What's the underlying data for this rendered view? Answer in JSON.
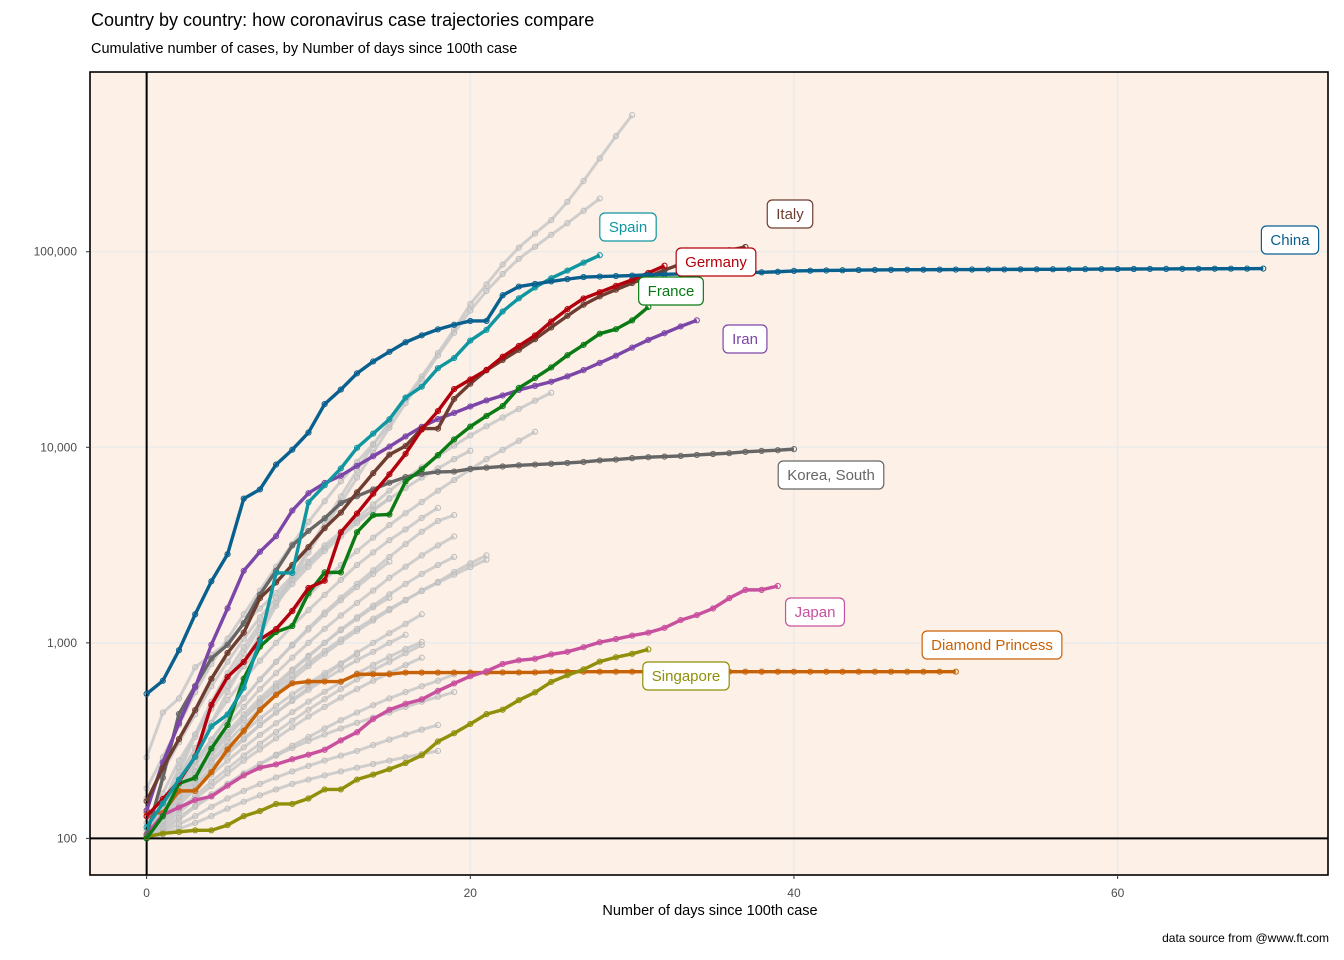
{
  "chart_data": {
    "type": "line",
    "title": "Country by country: how coronavirus case trajectories compare",
    "subtitle": "Cumulative number of cases, by Number of days since 100th case",
    "xlabel": "Number of days since 100th case",
    "ylabel": "",
    "caption": "data source from @www.ft.com",
    "xlim": [
      -3.5,
      73
    ],
    "ylim": [
      65,
      830000
    ],
    "yscale": "log10",
    "grid": true,
    "x_ticks": [
      0,
      20,
      40,
      60
    ],
    "x_tick_labels": [
      "0",
      "20",
      "40",
      "60"
    ],
    "y_ticks": [
      100,
      1000,
      10000,
      100000
    ],
    "y_tick_labels": [
      "100",
      "1,000",
      "10,000",
      "100,000"
    ],
    "reference_lines": {
      "x": 0,
      "y": 100
    },
    "background_color": "#fdf0e6",
    "highlighted_series": [
      {
        "name": "China",
        "color": "#08608f",
        "start_day": 0,
        "values": [
          548,
          640,
          917,
          1400,
          2063,
          2840,
          5464,
          6088,
          8156,
          9720,
          11891,
          16630,
          19731,
          23884,
          27479,
          30771,
          34446,
          37358,
          40085,
          42326,
          44269,
          44279,
          59895,
          66358,
          68413,
          70513,
          72434,
          74211,
          74619,
          75077,
          75550,
          76200,
          76700,
          77000,
          77200,
          77500,
          77900,
          78200,
          78500,
          79000,
          79800,
          80000,
          80200,
          80400,
          80600,
          80700,
          80800,
          80900,
          80950,
          81000,
          81050,
          81100,
          81150,
          81200,
          81250,
          81300,
          81350,
          81400,
          81450,
          81500,
          81550,
          81600,
          81650,
          81700,
          81750,
          81800,
          81850,
          81900,
          81950,
          82000
        ]
      },
      {
        "name": "Italy",
        "color": "#6e3d31",
        "start_day": 0,
        "values": [
          155,
          229,
          322,
          453,
          655,
          888,
          1128,
          1694,
          2036,
          2502,
          3089,
          3858,
          4636,
          5883,
          7375,
          9172,
          10149,
          12462,
          12462,
          17660,
          21157,
          24747,
          27980,
          31506,
          35713,
          41035,
          47021,
          53578,
          59138,
          63927,
          69176,
          74386,
          80589,
          86498,
          92472,
          97689,
          101739,
          105792
        ]
      },
      {
        "name": "Spain",
        "color": "#0f96a1",
        "start_day": 0,
        "values": [
          114,
          151,
          200,
          261,
          374,
          430,
          589,
          1024,
          2277,
          2277,
          5232,
          6391,
          7798,
          9942,
          11748,
          13910,
          17963,
          20410,
          25374,
          28603,
          35136,
          39885,
          49515,
          57786,
          65719,
          73235,
          80110,
          87956,
          95923
        ]
      },
      {
        "name": "Germany",
        "color": "#b3000d",
        "start_day": 0,
        "values": [
          130,
          159,
          196,
          262,
          482,
          670,
          799,
          1040,
          1176,
          1457,
          1908,
          2078,
          3675,
          4585,
          5795,
          7272,
          9257,
          12327,
          15320,
          19848,
          22213,
          24873,
          29056,
          32986,
          37323,
          43938,
          50871,
          57695,
          62095,
          66885,
          71808,
          77872,
          84794
        ]
      },
      {
        "name": "France",
        "color": "#0a7b14",
        "start_day": 0,
        "values": [
          100,
          130,
          191,
          204,
          288,
          380,
          656,
          957,
          1136,
          1219,
          1794,
          2293,
          2293,
          3681,
          4496,
          4532,
          6683,
          7715,
          9124,
          10970,
          12758,
          14463,
          16243,
          20123,
          22622,
          25600,
          29551,
          33402,
          38105,
          40174,
          44550,
          52128
        ]
      },
      {
        "name": "Iran",
        "color": "#7b46a8",
        "start_day": 0,
        "values": [
          139,
          245,
          388,
          593,
          978,
          1501,
          2336,
          2922,
          3513,
          4747,
          5823,
          6566,
          7161,
          8042,
          9000,
          10075,
          11364,
          12729,
          13938,
          14991,
          16169,
          17361,
          18407,
          19644,
          20610,
          21638,
          23049,
          24811,
          27017,
          29406,
          32332,
          35408,
          38309,
          41495,
          44605
        ]
      },
      {
        "name": "Korea, South",
        "color": "#666666",
        "start_day": 0,
        "values": [
          104,
          204,
          433,
          602,
          833,
          977,
          1261,
          1766,
          2337,
          3150,
          3736,
          4335,
          5186,
          5621,
          6088,
          6593,
          7041,
          7314,
          7478,
          7513,
          7755,
          7869,
          7979,
          8086,
          8162,
          8236,
          8320,
          8413,
          8565,
          8652,
          8799,
          8897,
          8961,
          9037,
          9137,
          9241,
          9332,
          9478,
          9583,
          9661,
          9786
        ]
      },
      {
        "name": "Japan",
        "color": "#c8509e",
        "start_day": 0,
        "values": [
          105,
          132,
          144,
          157,
          164,
          186,
          210,
          230,
          239,
          254,
          268,
          284,
          317,
          349,
          408,
          455,
          488,
          514,
          568,
          620,
          675,
          716,
          780,
          814,
          829,
          873,
          900,
          950,
          1007,
          1046,
          1089,
          1128,
          1193,
          1307,
          1387,
          1499,
          1693,
          1866,
          1866,
          1953
        ]
      },
      {
        "name": "Diamond Princess",
        "color": "#c86206",
        "start_day": 0,
        "values": [
          135,
          135,
          175,
          175,
          218,
          285,
          355,
          454,
          542,
          621,
          634,
          634,
          634,
          691,
          691,
          691,
          705,
          705,
          705,
          705,
          705,
          705,
          706,
          706,
          706,
          712,
          712,
          712,
          712,
          712,
          712,
          712,
          712,
          712,
          712,
          712,
          712,
          712,
          712,
          712,
          712,
          712,
          712,
          712,
          712,
          712,
          712,
          712,
          712,
          712,
          712
        ]
      },
      {
        "name": "Singapore",
        "color": "#8f8f0a",
        "start_day": 0,
        "values": [
          102,
          106,
          108,
          110,
          110,
          117,
          130,
          138,
          150,
          150,
          160,
          178,
          178,
          200,
          212,
          226,
          243,
          266,
          313,
          345,
          385,
          432,
          455,
          509,
          558,
          631,
          683,
          732,
          802,
          844,
          879,
          926
        ]
      }
    ],
    "background_series_color": "#c8c8c8",
    "background_series": [
      {
        "values": [
          100,
          150,
          220,
          330,
          470,
          650,
          880,
          1200,
          1600,
          2200,
          3000,
          4100,
          5600,
          7600,
          10300,
          13500,
          17700,
          23000,
          30300,
          40000,
          54000,
          68000,
          86000,
          105000,
          124000,
          145000,
          180000,
          230000,
          300000,
          390000,
          500000
        ]
      },
      {
        "values": [
          100,
          140,
          200,
          280,
          390,
          560,
          790,
          1100,
          1550,
          2100,
          2900,
          3900,
          5200,
          7000,
          9400,
          12600,
          16800,
          22300,
          29500,
          38500,
          50000,
          63000,
          77000,
          92000,
          106000,
          122000,
          140000,
          162000,
          187000
        ]
      },
      {
        "values": [
          180,
          260,
          380,
          560,
          780,
          1050,
          1400,
          1850,
          2450,
          3200,
          4150,
          5300,
          6700,
          8400,
          10400,
          13000
        ]
      },
      {
        "values": [
          260,
          440,
          520,
          750,
          870,
          1000,
          1250,
          1500,
          1800,
          2200,
          2600,
          3150,
          3700,
          4350,
          5100,
          6000,
          6900,
          7900,
          9000,
          10200,
          11500,
          12800,
          14200,
          15700,
          17300,
          19000
        ]
      },
      {
        "values": [
          120,
          170,
          250,
          340,
          460,
          600,
          760,
          950,
          1180,
          1450,
          1750,
          2100,
          2500,
          2950,
          3450,
          4000,
          4600,
          5250,
          6000,
          6800,
          7700,
          8700,
          9700,
          10800,
          12000
        ]
      },
      {
        "values": [
          110,
          150,
          210,
          290,
          390,
          510,
          650,
          810,
          1000,
          1220,
          1470,
          1760,
          2100,
          2500,
          2900,
          3350,
          3800,
          4350,
          4900
        ]
      },
      {
        "values": [
          105,
          140,
          185,
          245,
          320,
          410,
          520,
          650,
          800,
          980,
          1190,
          1430,
          1700,
          2000,
          2350,
          2750,
          3200,
          3700,
          4200,
          4500
        ]
      },
      {
        "values": [
          100,
          135,
          180,
          235,
          300,
          380,
          470,
          580,
          700,
          840,
          1000,
          1180,
          1380,
          1600,
          1850,
          2150,
          2450,
          2800,
          3150,
          3500
        ]
      },
      {
        "values": [
          100,
          125,
          160,
          200,
          250,
          310,
          380,
          460,
          550,
          650,
          760,
          880,
          1010,
          1150,
          1300,
          1470,
          1650,
          1850,
          2050,
          2300,
          2550,
          2800
        ]
      },
      {
        "values": [
          100,
          130,
          170,
          220,
          280,
          350,
          430,
          520,
          620,
          730,
          860,
          1000,
          1160,
          1330,
          1520,
          1700
        ]
      },
      {
        "values": [
          100,
          120,
          150,
          185,
          225,
          270,
          320,
          380,
          440,
          510,
          590,
          680,
          780,
          890,
          1000,
          1120,
          1250,
          1400
        ]
      },
      {
        "values": [
          100,
          125,
          155,
          190,
          230,
          275,
          325,
          380,
          440,
          505,
          575,
          650,
          730,
          815,
          900,
          1000,
          1100
        ]
      },
      {
        "values": [
          100,
          115,
          135,
          160,
          185,
          215,
          250,
          285,
          325,
          370,
          420,
          470,
          525,
          580,
          640,
          700,
          770,
          840
        ]
      },
      {
        "values": [
          100,
          110,
          125,
          145,
          165,
          190,
          215,
          240,
          265,
          290,
          315,
          340,
          365,
          390,
          415,
          440,
          470,
          500,
          530,
          560
        ]
      },
      {
        "values": [
          100,
          108,
          118,
          130,
          145,
          160,
          175,
          190,
          205,
          220,
          235,
          250,
          265,
          280,
          300,
          320,
          340,
          360,
          380
        ]
      },
      {
        "values": [
          100,
          105,
          112,
          120,
          130,
          142,
          154,
          166,
          178,
          190,
          200,
          210,
          220,
          230,
          240,
          250,
          260,
          270,
          280
        ]
      },
      {
        "values": [
          100,
          130,
          165,
          210,
          265,
          330,
          410,
          500,
          600,
          720,
          850,
          1000,
          1170,
          1350,
          1550,
          1770,
          2000,
          2250,
          2500,
          2750
        ]
      },
      {
        "values": [
          100,
          140,
          190,
          250,
          320,
          410,
          520,
          650,
          800,
          970,
          1170,
          1400,
          1650,
          1930,
          2250,
          2600
        ]
      },
      {
        "values": [
          100,
          128,
          162,
          200,
          245,
          295,
          350,
          410,
          475,
          545,
          620,
          700,
          785,
          875
        ]
      },
      {
        "values": [
          100,
          118,
          140,
          165,
          195,
          228,
          265,
          305,
          350,
          400,
          455,
          515,
          580,
          650,
          725,
          800,
          885,
          975
        ]
      },
      {
        "values": [
          100,
          112,
          128,
          147,
          168,
          190,
          214,
          240,
          268,
          298,
          330,
          365,
          402,
          440,
          480,
          520,
          560,
          600,
          640,
          690
        ]
      },
      {
        "values": [
          160,
          220,
          310,
          430,
          600,
          800,
          1050,
          1350,
          1700,
          2100,
          2550,
          3050,
          3600,
          4200,
          4800,
          5500
        ]
      },
      {
        "values": [
          100,
          150,
          230,
          340,
          500,
          700,
          950,
          1250,
          1600,
          2000,
          2450,
          2950,
          3500,
          4100,
          4750,
          5450,
          6200,
          7000,
          7800,
          8700,
          9600
        ]
      },
      {
        "values": [
          100,
          122,
          148,
          178,
          212,
          250,
          292,
          338,
          388,
          442,
          500,
          562,
          628,
          698,
          772,
          850,
          930,
          1010
        ]
      },
      {
        "values": [
          100,
          135,
          175,
          220,
          275,
          340,
          410,
          490,
          580,
          680,
          790,
          910,
          1040,
          1180,
          1330,
          1490,
          1660,
          1840,
          2030,
          2230,
          2440,
          2660
        ]
      }
    ],
    "labels": [
      {
        "series": "Spain",
        "text": "Spain"
      },
      {
        "series": "Italy",
        "text": "Italy"
      },
      {
        "series": "China",
        "text": "China"
      },
      {
        "series": "Germany",
        "text": "Germany"
      },
      {
        "series": "France",
        "text": "France"
      },
      {
        "series": "Iran",
        "text": "Iran"
      },
      {
        "series": "Korea, South",
        "text": "Korea, South"
      },
      {
        "series": "Japan",
        "text": "Japan"
      },
      {
        "series": "Diamond Princess",
        "text": "Diamond Princess"
      },
      {
        "series": "Singapore",
        "text": "Singapore"
      }
    ]
  }
}
